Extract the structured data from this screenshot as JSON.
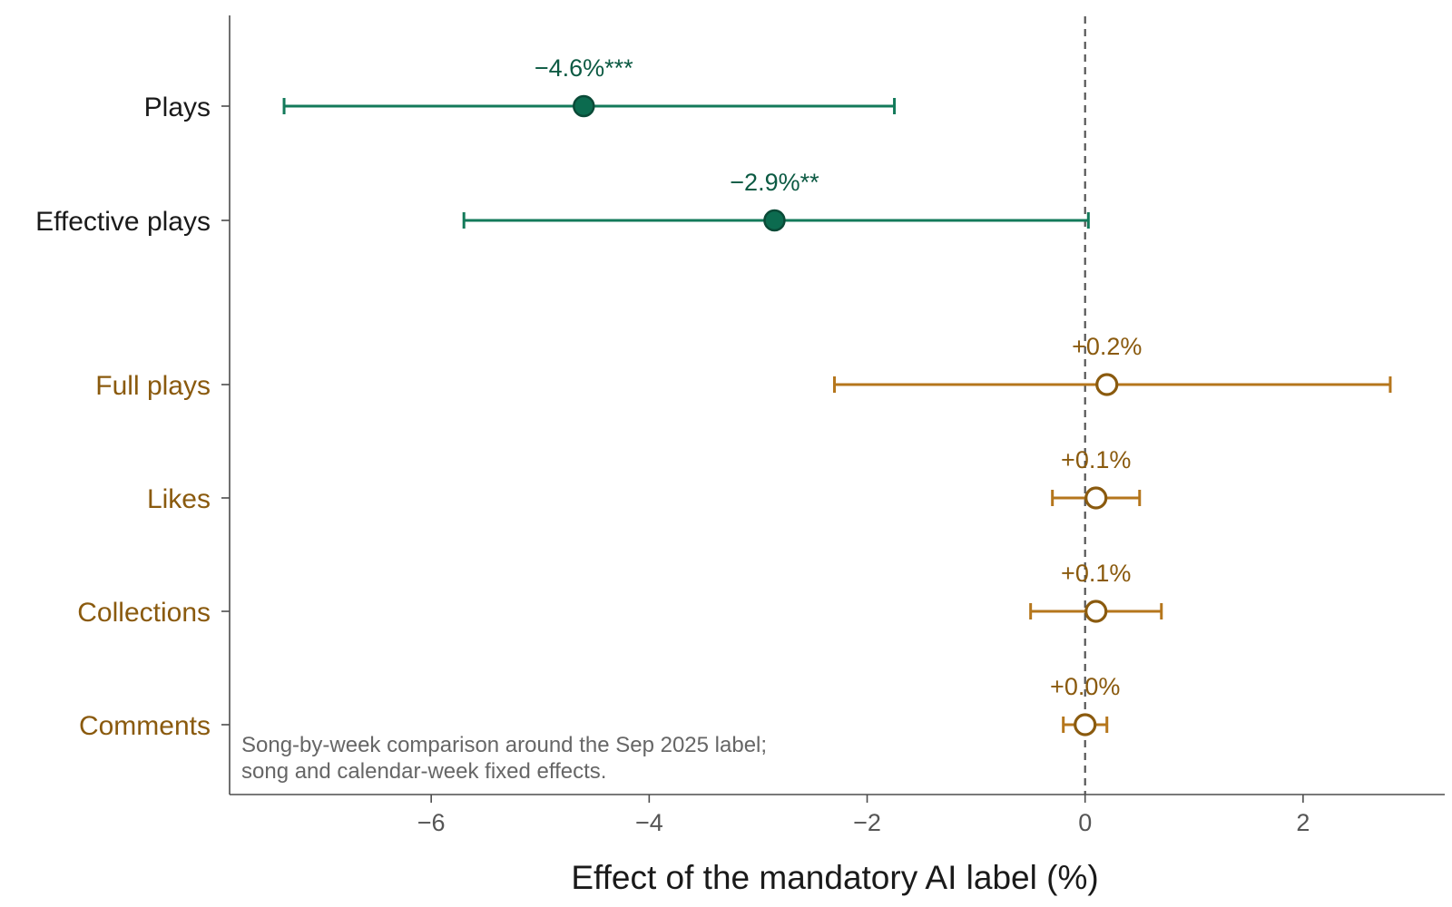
{
  "chart_data": {
    "type": "scatter",
    "subtype": "forest-plot",
    "xlabel": "Effect of the mandatory AI label (%)",
    "xlim": [
      -7.85,
      3.3
    ],
    "xticks": [
      -6,
      -4,
      -2,
      0,
      2
    ],
    "xtick_labels": [
      "−6",
      "−4",
      "−2",
      "0",
      "2"
    ],
    "reference_line": 0,
    "grid": false,
    "note_lines": [
      "Song-by-week comparison around the Sep 2025 label;",
      "song and calendar-week fixed effects."
    ],
    "groups": [
      {
        "id": "significant",
        "color": "#137a5a",
        "fill": "#0c6b4f",
        "label_color": "#0c5a43",
        "text_color": "#1a1a1a",
        "marker": "filled"
      },
      {
        "id": "not-significant",
        "color": "#b5761c",
        "fill": "#ffffff",
        "label_color": "#8a5a0e",
        "text_color": "#8a5a0e",
        "marker": "hollow"
      }
    ],
    "points": [
      {
        "category": "Plays",
        "group": "significant",
        "estimate": -4.6,
        "ci_low": -7.35,
        "ci_high": -1.75,
        "label": "−4.6%***"
      },
      {
        "category": "Effective plays",
        "group": "significant",
        "estimate": -2.85,
        "ci_low": -5.7,
        "ci_high": 0.03,
        "label": "−2.9%**"
      },
      {
        "category": "Full plays",
        "group": "not-significant",
        "estimate": 0.2,
        "ci_low": -2.3,
        "ci_high": 2.8,
        "label": "+0.2%"
      },
      {
        "category": "Likes",
        "group": "not-significant",
        "estimate": 0.1,
        "ci_low": -0.3,
        "ci_high": 0.5,
        "label": "+0.1%"
      },
      {
        "category": "Collections",
        "group": "not-significant",
        "estimate": 0.1,
        "ci_low": -0.5,
        "ci_high": 0.7,
        "label": "+0.1%"
      },
      {
        "category": "Comments",
        "group": "not-significant",
        "estimate": 0.0,
        "ci_low": -0.2,
        "ci_high": 0.2,
        "label": "+0.0%"
      }
    ]
  }
}
